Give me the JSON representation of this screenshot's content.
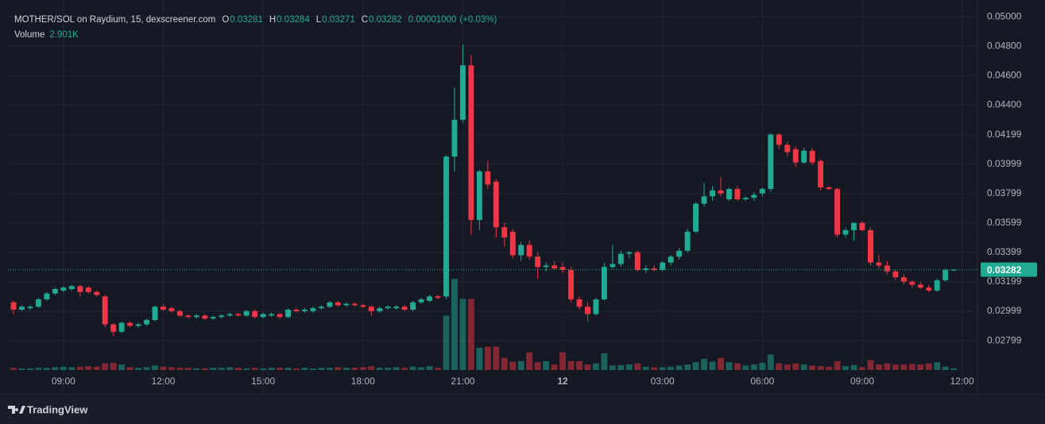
{
  "chart_data": {
    "type": "candlestick",
    "legend": {
      "symbol": "MOTHER/SOL on Raydium, 15, dexscreener.com",
      "open_label": "O",
      "high_label": "H",
      "low_label": "L",
      "close_label": "C",
      "change": {
        "value": 1e-05,
        "label": "0.00001000"
      },
      "change_pct_label": "(+0.03%)"
    },
    "candles": [
      [
        0.0306,
        0.0307,
        0.0298,
        0.0301
      ],
      [
        0.0301,
        0.0304,
        0.03,
        0.0303
      ],
      [
        0.0302,
        0.0304,
        0.0301,
        0.0303
      ],
      [
        0.0303,
        0.0309,
        0.0302,
        0.0308
      ],
      [
        0.0308,
        0.0313,
        0.0307,
        0.0312
      ],
      [
        0.0312,
        0.0316,
        0.0311,
        0.0315
      ],
      [
        0.0314,
        0.0317,
        0.0313,
        0.0316
      ],
      [
        0.0315,
        0.0318,
        0.0314,
        0.0317
      ],
      [
        0.0317,
        0.0318,
        0.031,
        0.0313
      ],
      [
        0.0316,
        0.0317,
        0.0312,
        0.0313
      ],
      [
        0.0313,
        0.0314,
        0.031,
        0.0311
      ],
      [
        0.031,
        0.0311,
        0.0289,
        0.0291
      ],
      [
        0.0291,
        0.0292,
        0.0283,
        0.0286
      ],
      [
        0.0286,
        0.0293,
        0.0285,
        0.0292
      ],
      [
        0.0292,
        0.0293,
        0.0289,
        0.029
      ],
      [
        0.029,
        0.0292,
        0.0289,
        0.0291
      ],
      [
        0.0291,
        0.0295,
        0.029,
        0.0294
      ],
      [
        0.0294,
        0.0304,
        0.0293,
        0.0303
      ],
      [
        0.0303,
        0.0305,
        0.03,
        0.0301
      ],
      [
        0.0302,
        0.0303,
        0.0299,
        0.03
      ],
      [
        0.03,
        0.0301,
        0.0296,
        0.0297
      ],
      [
        0.0297,
        0.0298,
        0.0295,
        0.0296
      ],
      [
        0.0296,
        0.0298,
        0.0295,
        0.0297
      ],
      [
        0.0297,
        0.0298,
        0.0294,
        0.0295
      ],
      [
        0.0295,
        0.0297,
        0.0294,
        0.0296
      ],
      [
        0.0296,
        0.0298,
        0.0295,
        0.0297
      ],
      [
        0.0297,
        0.0299,
        0.0296,
        0.0298
      ],
      [
        0.0298,
        0.0299,
        0.0296,
        0.0297
      ],
      [
        0.0297,
        0.0301,
        0.0296,
        0.03
      ],
      [
        0.03,
        0.0301,
        0.0295,
        0.0296
      ],
      [
        0.0296,
        0.0299,
        0.0295,
        0.0298
      ],
      [
        0.0297,
        0.0299,
        0.0296,
        0.0298
      ],
      [
        0.0298,
        0.0299,
        0.0295,
        0.0296
      ],
      [
        0.0296,
        0.0302,
        0.0295,
        0.0301
      ],
      [
        0.0301,
        0.0302,
        0.0299,
        0.03
      ],
      [
        0.03,
        0.0302,
        0.0299,
        0.0301
      ],
      [
        0.03,
        0.0303,
        0.0299,
        0.0302
      ],
      [
        0.0302,
        0.0304,
        0.0301,
        0.0303
      ],
      [
        0.0303,
        0.0307,
        0.0302,
        0.0306
      ],
      [
        0.0306,
        0.0307,
        0.0303,
        0.0304
      ],
      [
        0.0304,
        0.0306,
        0.0303,
        0.0305
      ],
      [
        0.0305,
        0.0306,
        0.0303,
        0.0304
      ],
      [
        0.0304,
        0.0305,
        0.0302,
        0.0303
      ],
      [
        0.0303,
        0.0304,
        0.0297,
        0.03
      ],
      [
        0.03,
        0.0303,
        0.0299,
        0.0302
      ],
      [
        0.0302,
        0.0304,
        0.0301,
        0.0303
      ],
      [
        0.0302,
        0.0304,
        0.0301,
        0.0303
      ],
      [
        0.0303,
        0.0304,
        0.03,
        0.0301
      ],
      [
        0.0301,
        0.0307,
        0.03,
        0.0306
      ],
      [
        0.0306,
        0.0309,
        0.0305,
        0.0308
      ],
      [
        0.0307,
        0.0311,
        0.0306,
        0.031
      ],
      [
        0.031,
        0.0311,
        0.0308,
        0.0309
      ],
      [
        0.031,
        0.0406,
        0.0308,
        0.0405
      ],
      [
        0.0405,
        0.0452,
        0.0395,
        0.043
      ],
      [
        0.043,
        0.0481,
        0.0428,
        0.0467
      ],
      [
        0.0467,
        0.0474,
        0.0352,
        0.0362
      ],
      [
        0.0362,
        0.0396,
        0.0355,
        0.0395
      ],
      [
        0.0395,
        0.0402,
        0.0383,
        0.0386
      ],
      [
        0.0388,
        0.039,
        0.035,
        0.0357
      ],
      [
        0.0357,
        0.036,
        0.0344,
        0.035
      ],
      [
        0.0354,
        0.0356,
        0.0336,
        0.0338
      ],
      [
        0.0338,
        0.0347,
        0.0334,
        0.0345
      ],
      [
        0.0345,
        0.0348,
        0.0335,
        0.0337
      ],
      [
        0.0337,
        0.034,
        0.0322,
        0.033
      ],
      [
        0.033,
        0.0333,
        0.0327,
        0.0331
      ],
      [
        0.0331,
        0.0334,
        0.0328,
        0.0329
      ],
      [
        0.033,
        0.0333,
        0.0326,
        0.0328
      ],
      [
        0.0328,
        0.033,
        0.0306,
        0.0308
      ],
      [
        0.0308,
        0.031,
        0.0301,
        0.0303
      ],
      [
        0.0303,
        0.0306,
        0.0293,
        0.0298
      ],
      [
        0.0298,
        0.0309,
        0.0297,
        0.0308
      ],
      [
        0.0308,
        0.0333,
        0.0307,
        0.033
      ],
      [
        0.033,
        0.0345,
        0.0329,
        0.0332
      ],
      [
        0.0332,
        0.0341,
        0.033,
        0.0339
      ],
      [
        0.0339,
        0.0341,
        0.0336,
        0.034
      ],
      [
        0.034,
        0.0341,
        0.0327,
        0.0328
      ],
      [
        0.0328,
        0.0331,
        0.0326,
        0.0329
      ],
      [
        0.0329,
        0.0331,
        0.0327,
        0.0328
      ],
      [
        0.0328,
        0.0334,
        0.0327,
        0.0333
      ],
      [
        0.0333,
        0.0338,
        0.0331,
        0.0337
      ],
      [
        0.0337,
        0.0343,
        0.0335,
        0.0341
      ],
      [
        0.0341,
        0.0356,
        0.034,
        0.0354
      ],
      [
        0.0354,
        0.0374,
        0.0353,
        0.0373
      ],
      [
        0.0373,
        0.0387,
        0.0371,
        0.0378
      ],
      [
        0.0378,
        0.0385,
        0.0375,
        0.0382
      ],
      [
        0.0382,
        0.0391,
        0.0378,
        0.038
      ],
      [
        0.0376,
        0.0384,
        0.0375,
        0.0383
      ],
      [
        0.0383,
        0.0385,
        0.0375,
        0.0376
      ],
      [
        0.0376,
        0.0378,
        0.0375,
        0.0377
      ],
      [
        0.0377,
        0.0381,
        0.0375,
        0.0379
      ],
      [
        0.038,
        0.0384,
        0.0378,
        0.0383
      ],
      [
        0.0383,
        0.0421,
        0.0381,
        0.042
      ],
      [
        0.042,
        0.0421,
        0.041,
        0.0413
      ],
      [
        0.0413,
        0.0415,
        0.0405,
        0.0408
      ],
      [
        0.041,
        0.0412,
        0.0398,
        0.0401
      ],
      [
        0.0401,
        0.0411,
        0.04,
        0.0409
      ],
      [
        0.0409,
        0.0411,
        0.0399,
        0.0401
      ],
      [
        0.0402,
        0.0403,
        0.0382,
        0.0384
      ],
      [
        0.0384,
        0.0385,
        0.0382,
        0.0383
      ],
      [
        0.0383,
        0.0384,
        0.035,
        0.0352
      ],
      [
        0.0352,
        0.0357,
        0.035,
        0.0355
      ],
      [
        0.0355,
        0.036,
        0.0348,
        0.036
      ],
      [
        0.036,
        0.0361,
        0.0354,
        0.0355
      ],
      [
        0.0355,
        0.0357,
        0.0331,
        0.0333
      ],
      [
        0.0333,
        0.0338,
        0.0329,
        0.0331
      ],
      [
        0.0331,
        0.0334,
        0.0325,
        0.0327
      ],
      [
        0.0327,
        0.0328,
        0.0321,
        0.0323
      ],
      [
        0.0323,
        0.0325,
        0.0318,
        0.032
      ],
      [
        0.032,
        0.0321,
        0.0316,
        0.0318
      ],
      [
        0.0318,
        0.032,
        0.0315,
        0.0316
      ],
      [
        0.0316,
        0.0318,
        0.0313,
        0.0314
      ],
      [
        0.0314,
        0.0322,
        0.0313,
        0.0321
      ],
      [
        0.0321,
        0.0329,
        0.032,
        0.0328
      ],
      [
        0.03281,
        0.03284,
        0.03271,
        0.03282
      ]
    ],
    "volume": {
      "name": "Volume",
      "current_label": "2.901K",
      "ylim": [
        0,
        200000
      ],
      "values": [
        4000,
        3000,
        3000,
        4000,
        4000,
        5000,
        6000,
        5000,
        6000,
        7000,
        6000,
        12000,
        13000,
        10000,
        5000,
        4000,
        5000,
        8000,
        6000,
        5000,
        4000,
        4000,
        3000,
        3000,
        4000,
        4000,
        5000,
        4000,
        3000,
        4000,
        3000,
        4000,
        4000,
        4000,
        3000,
        4000,
        3000,
        4000,
        4000,
        5000,
        4000,
        4000,
        5000,
        7000,
        4000,
        4000,
        5000,
        4000,
        6000,
        5000,
        7000,
        4000,
        98000,
        164000,
        128000,
        128000,
        40000,
        42000,
        42000,
        22000,
        15000,
        16000,
        32000,
        14000,
        16000,
        10000,
        32000,
        16000,
        16000,
        10000,
        12000,
        30000,
        8000,
        9000,
        10000,
        12000,
        6000,
        5000,
        5000,
        6000,
        8000,
        10000,
        14000,
        20000,
        15000,
        22000,
        14000,
        12000,
        8000,
        10000,
        13000,
        28000,
        12000,
        10000,
        12000,
        10000,
        8000,
        7000,
        6000,
        16000,
        7000,
        9000,
        5000,
        18000,
        10000,
        12000,
        10000,
        10000,
        11000,
        10000,
        12000,
        14000,
        6000,
        2901
      ]
    },
    "up_color": "#22ab94",
    "down_color": "#f23645",
    "xlim": [
      -0.67,
      115.85
    ],
    "xticks": [
      {
        "value": 6,
        "label": "09:00"
      },
      {
        "value": 18,
        "label": "12:00"
      },
      {
        "value": 30,
        "label": "15:00"
      },
      {
        "value": 42,
        "label": "18:00"
      },
      {
        "value": 54,
        "label": "21:00"
      },
      {
        "value": 66,
        "label": "12"
      },
      {
        "value": 78,
        "label": "03:00"
      },
      {
        "value": 90,
        "label": "06:00"
      },
      {
        "value": 102,
        "label": "09:00"
      },
      {
        "value": 114,
        "label": "12:00"
      }
    ],
    "ylim": [
      0.026,
      0.0506
    ],
    "yticks": [
      {
        "value": 0.05,
        "label": "0.05000"
      },
      {
        "value": 0.048,
        "label": "0.04800"
      },
      {
        "value": 0.046,
        "label": "0.04600"
      },
      {
        "value": 0.044,
        "label": "0.04400"
      },
      0.04199,
      0.03999,
      0.03799,
      0.03599,
      0.03399,
      0.03199,
      0.02999,
      0.02799
    ],
    "grid": true,
    "branding": "TradingView"
  }
}
